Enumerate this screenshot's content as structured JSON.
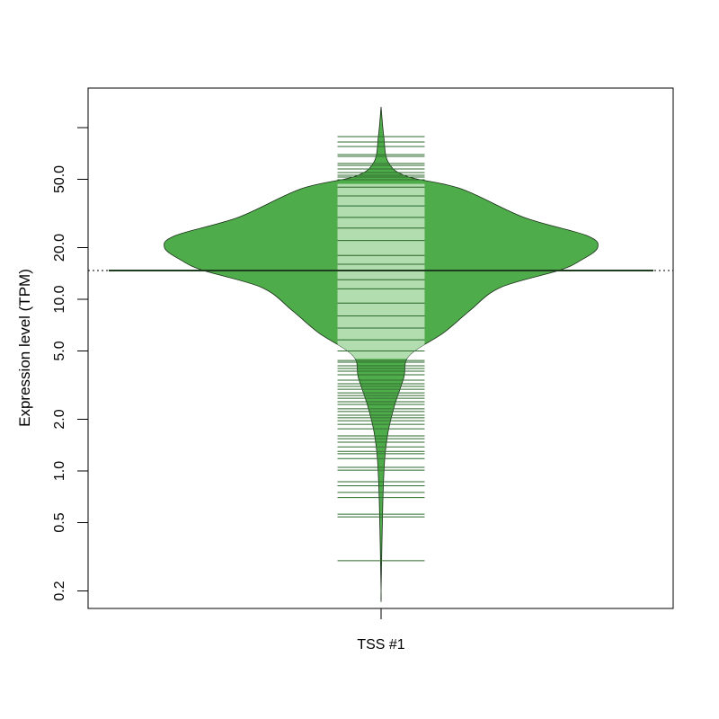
{
  "chart_data": {
    "type": "beanplot",
    "title": "",
    "xlabel": "",
    "ylabel": "Expression level (TPM)",
    "y_scale": "log",
    "ylim": [
      0.17,
      160
    ],
    "y_ticks": [
      0.2,
      0.5,
      1.0,
      2.0,
      5.0,
      10.0,
      20.0,
      50.0,
      100
    ],
    "y_tick_labels": [
      "0.2",
      "0.5",
      "1.0",
      "2.0",
      "5.0",
      "10.0",
      "20.0",
      "50.0",
      ""
    ],
    "categories": [
      "TSS #1"
    ],
    "grid": false,
    "colors": {
      "density_fill": "#4FAC4A",
      "band_fill": "#B2DDAF",
      "bean_line": "#2E6B2E",
      "bean_line_inner": "#86C683",
      "median_line": "#1E3D1E",
      "outline": "#1A2E1A"
    },
    "median": 14.7,
    "band_range": [
      4.5,
      47
    ],
    "density": [
      [
        132,
        0
      ],
      [
        90,
        0.012
      ],
      [
        63,
        0.033
      ],
      [
        52,
        0.12
      ],
      [
        44,
        0.37
      ],
      [
        30,
        0.66
      ],
      [
        23.5,
        0.95
      ],
      [
        20,
        1.0
      ],
      [
        16.8,
        0.92
      ],
      [
        14.7,
        0.82
      ],
      [
        11.7,
        0.55
      ],
      [
        8.6,
        0.41
      ],
      [
        6.4,
        0.29
      ],
      [
        4.7,
        0.13
      ],
      [
        3.5,
        0.105
      ],
      [
        2.4,
        0.062
      ],
      [
        1.7,
        0.033
      ],
      [
        1.18,
        0.017
      ],
      [
        0.65,
        0.008
      ],
      [
        0.2,
        0
      ]
    ],
    "observations": [
      88.6,
      82.5,
      77.6,
      69.7,
      68,
      61.8,
      60.3,
      57.4,
      54.7,
      52.8,
      51.5,
      49.7,
      45,
      40,
      35,
      30,
      26,
      22,
      18,
      16,
      13,
      11.5,
      9.5,
      8,
      6.8,
      5.8,
      5,
      4.4,
      4.3,
      4.1,
      3.95,
      3.81,
      3.63,
      3.38,
      3.22,
      3.11,
      2.99,
      2.85,
      2.75,
      2.65,
      2.53,
      2.44,
      2.3,
      2.22,
      2.11,
      2.04,
      1.96,
      1.87,
      1.76,
      1.6,
      1.54,
      1.47,
      1.38,
      1.3,
      1.26,
      1.18,
      1.05,
      1.01,
      0.865,
      0.82,
      0.75,
      0.7,
      0.56,
      0.54,
      0.3
    ]
  }
}
